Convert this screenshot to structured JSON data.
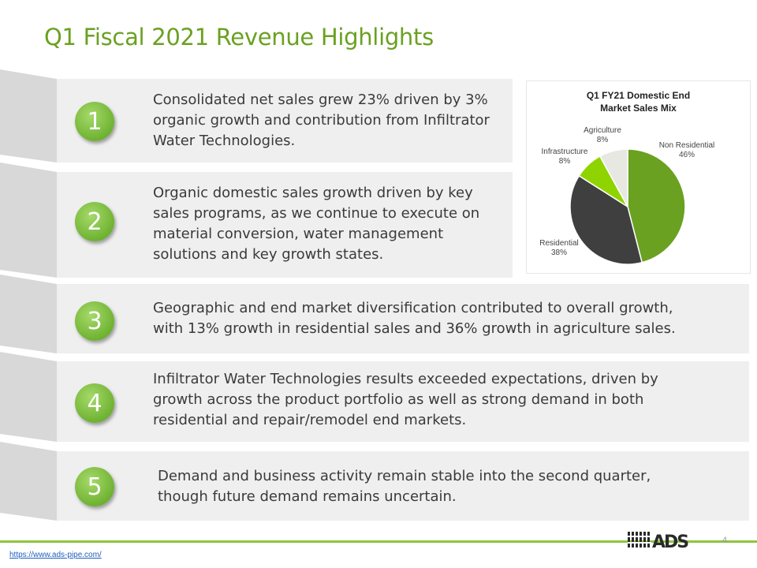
{
  "title": "Q1 Fiscal 2021 Revenue Highlights",
  "items": [
    {
      "num": "1",
      "text_lines": [
        "Consolidated net sales grew 23% driven by 3%",
        "organic growth and contribution from Infiltrator",
        "Water Technologies."
      ]
    },
    {
      "num": "2",
      "text_lines": [
        "Organic domestic sales growth driven by key",
        "sales programs, as we continue to execute on",
        "material conversion, water management",
        "solutions and key growth states."
      ]
    },
    {
      "num": "3",
      "text_lines": [
        "Geographic and end market diversification contributed to overall growth,",
        "with 13% growth in residential sales and 36% growth in agriculture sales."
      ]
    },
    {
      "num": "4",
      "text_lines": [
        "Infiltrator Water Technologies results exceeded expectations, driven by",
        "growth across the product portfolio as well as strong demand in both",
        "residential and repair/remodel end markets."
      ]
    },
    {
      "num": "5",
      "text_lines": [
        "Demand and business activity remain stable into the second quarter,",
        "though future demand remains uncertain."
      ]
    }
  ],
  "chart_data": {
    "type": "pie",
    "title_lines": [
      "Q1 FY21 Domestic End",
      "Market Sales Mix"
    ],
    "slices": [
      {
        "label": "Non Residential",
        "value": 46,
        "display": "46%",
        "color": "#6aa121"
      },
      {
        "label": "Residential",
        "value": 38,
        "display": "38%",
        "color": "#3f3f3f"
      },
      {
        "label": "Infrastructure",
        "value": 8,
        "display": "8%",
        "color": "#8fd400"
      },
      {
        "label": "Agriculture",
        "value": 8,
        "display": "8%",
        "color": "#e8e8e2"
      }
    ]
  },
  "footer": {
    "url": "https://www.ads-pipe.com/",
    "page_number": "4",
    "logo_text": "ADS"
  },
  "colors": {
    "accent": "#6aa121",
    "band": "#efefef",
    "tab": "#d6d6d6"
  }
}
